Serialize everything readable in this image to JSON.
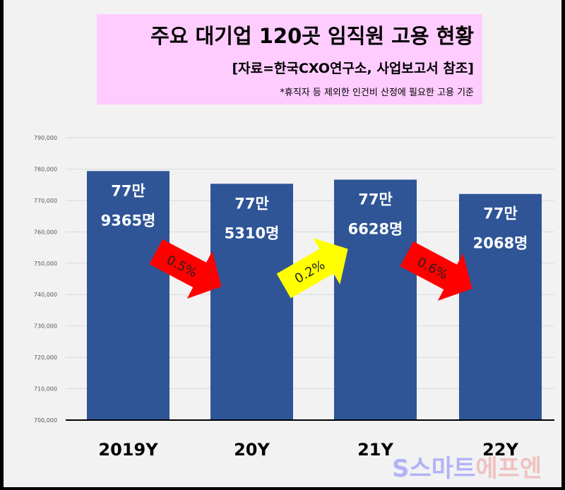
{
  "title": "주요 대기업 120곳 임직원 고용 현황",
  "source": "[자료=한국CXO연구소, 사업보고서 참조]",
  "note": "*휴직자 등 제외한 인건비 산정에 필요한 고용 기준",
  "watermark": {
    "part1": "S스마트",
    "part2": "에프엔"
  },
  "chart_data": {
    "type": "bar",
    "categories": [
      "2019Y",
      "20Y",
      "21Y",
      "22Y"
    ],
    "values": [
      779365,
      775310,
      776628,
      772068
    ],
    "data_labels": [
      [
        "77만",
        "9365명"
      ],
      [
        "77만",
        "5310명"
      ],
      [
        "77만",
        "6628명"
      ],
      [
        "77만",
        "2068명"
      ]
    ],
    "ylim": [
      700000,
      790000
    ],
    "yticks": [
      "700,000",
      "710,000",
      "720,000",
      "730,000",
      "740,000",
      "750,000",
      "760,000",
      "770,000",
      "780,000",
      "790,000"
    ],
    "grid": true,
    "bar_color": "#2f5597",
    "changes": [
      {
        "label": "0.5%",
        "direction": "down",
        "color": "#ff0000"
      },
      {
        "label": "0.2%",
        "direction": "up",
        "color": "#ffff00"
      },
      {
        "label": "0.6%",
        "direction": "down",
        "color": "#ff0000"
      }
    ]
  }
}
